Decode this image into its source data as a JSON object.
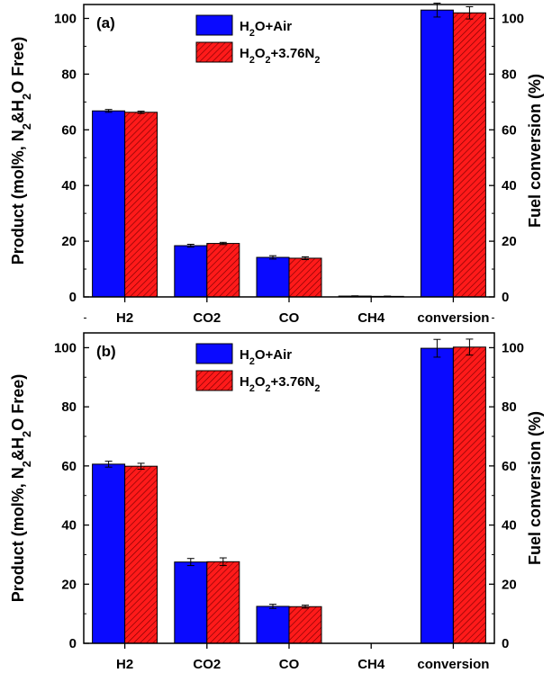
{
  "chart_data": [
    {
      "type": "bar",
      "panel_label": "(a)",
      "categories": [
        "H2",
        "CO2",
        "CO",
        "CH4",
        "conversion"
      ],
      "ylabel_left": "Product (mol%, N₂&H₂O Free)",
      "ylabel_right": "Fuel conversion (%)",
      "ylim": [
        0,
        105
      ],
      "yticks": [
        0,
        20,
        40,
        60,
        80,
        100
      ],
      "legend_position": "top-center",
      "series": [
        {
          "name": "H₂O+Air",
          "color": "#0a0aff",
          "values": [
            66.8,
            18.4,
            14.2,
            0.3,
            103.0
          ],
          "errors": [
            0.5,
            0.5,
            0.6,
            0.1,
            2.5
          ]
        },
        {
          "name": "H₂O₂+3.76N₂",
          "color": "#ff1a1a",
          "pattern": "hatched",
          "values": [
            66.3,
            19.2,
            13.9,
            0.2,
            102.0
          ],
          "errors": [
            0.4,
            0.4,
            0.5,
            0.1,
            2.2
          ]
        }
      ]
    },
    {
      "type": "bar",
      "panel_label": "(b)",
      "categories": [
        "H2",
        "CO2",
        "CO",
        "CH4",
        "conversion"
      ],
      "ylabel_left": "Product (mol%, N₂&H₂O Free)",
      "ylabel_right": "Fuel conversion (%)",
      "ylim": [
        0,
        105
      ],
      "yticks": [
        0,
        20,
        40,
        60,
        80,
        100
      ],
      "legend_position": "top-center",
      "series": [
        {
          "name": "H₂O+Air",
          "color": "#0a0aff",
          "values": [
            60.6,
            27.5,
            12.5,
            0,
            99.8
          ],
          "errors": [
            1.0,
            1.2,
            0.7,
            0,
            3.0
          ]
        },
        {
          "name": "H₂O₂+3.76N₂",
          "color": "#ff1a1a",
          "pattern": "hatched",
          "values": [
            59.9,
            27.6,
            12.4,
            0,
            100.2
          ],
          "errors": [
            1.0,
            1.3,
            0.5,
            0,
            2.7
          ]
        }
      ]
    }
  ]
}
